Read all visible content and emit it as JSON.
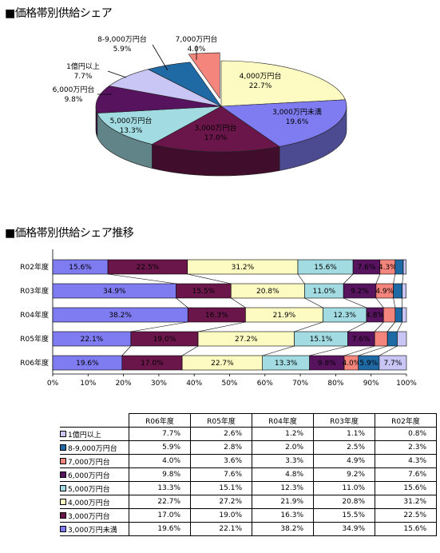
{
  "titles": {
    "pie": "■価格帯別供給シェア",
    "bar": "■価格帯別供給シェア推移"
  },
  "colors": {
    "c1": "#c9c5f5",
    "c2": "#1f6aa4",
    "c3": "#f4857d",
    "c4": "#58135f",
    "c5": "#a2dce2",
    "c6": "#fdfbc1",
    "c7": "#6b164a",
    "c8": "#7f7bf1"
  },
  "chart_data": [
    {
      "type": "pie",
      "title": "■価格帯別供給シェア",
      "slices": [
        {
          "name": "4,000万円台",
          "value": 22.7,
          "label": "22.7%",
          "color": "#fdfbc1"
        },
        {
          "name": "3,000万円未満",
          "value": 19.6,
          "label": "19.6%",
          "color": "#7f7bf1"
        },
        {
          "name": "3,000万円台",
          "value": 17.0,
          "label": "17.0%",
          "color": "#6b164a"
        },
        {
          "name": "5,000万円台",
          "value": 13.3,
          "label": "13.3%",
          "color": "#a2dce2"
        },
        {
          "name": "6,000万円台",
          "value": 9.8,
          "label": "9.8%",
          "color": "#58135f"
        },
        {
          "name": "1億円以上",
          "value": 7.7,
          "label": "7.7%",
          "color": "#c9c5f5"
        },
        {
          "name": "8-9,000万円台",
          "value": 5.9,
          "label": "5.9%",
          "color": "#1f6aa4"
        },
        {
          "name": "7,000万円台",
          "value": 4.0,
          "label": "4.0%",
          "color": "#f4857d"
        }
      ]
    },
    {
      "type": "bar",
      "orientation": "horizontal-stacked-100",
      "title": "■価格帯別供給シェア推移",
      "categories": [
        "R02年度",
        "R03年度",
        "R04年度",
        "R05年度",
        "R06年度"
      ],
      "xlim": [
        0,
        100
      ],
      "xticks": [
        "0%",
        "10%",
        "20%",
        "30%",
        "40%",
        "50%",
        "60%",
        "70%",
        "80%",
        "90%",
        "100%"
      ],
      "series": [
        {
          "name": "3,000万円未満",
          "color": "#7f7bf1",
          "values": [
            15.6,
            34.9,
            38.2,
            22.1,
            19.6
          ]
        },
        {
          "name": "3,000万円台",
          "color": "#6b164a",
          "values": [
            22.5,
            15.5,
            16.3,
            19.0,
            17.0
          ]
        },
        {
          "name": "4,000万円台",
          "color": "#fdfbc1",
          "values": [
            31.2,
            20.8,
            21.9,
            27.2,
            22.7
          ]
        },
        {
          "name": "5,000万円台",
          "color": "#a2dce2",
          "values": [
            15.6,
            11.0,
            12.3,
            15.1,
            13.3
          ]
        },
        {
          "name": "6,000万円台",
          "color": "#58135f",
          "values": [
            7.6,
            9.2,
            4.8,
            7.6,
            9.8
          ]
        },
        {
          "name": "7,000万円台",
          "color": "#f4857d",
          "values": [
            4.3,
            4.9,
            3.3,
            3.6,
            4.0
          ]
        },
        {
          "name": "8-9,000万円台",
          "color": "#1f6aa4",
          "values": [
            2.3,
            2.5,
            2.0,
            2.8,
            5.9
          ]
        },
        {
          "name": "1億円以上",
          "color": "#c9c5f5",
          "values": [
            0.8,
            1.1,
            1.2,
            2.6,
            7.7
          ]
        }
      ],
      "shown_labels": [
        [
          "15.6%",
          "22.5%",
          "31.2%",
          "15.6%",
          "7.6%",
          "4.3%",
          "",
          ""
        ],
        [
          "34.9%",
          "15.5%",
          "20.8%",
          "11.0%",
          "9.2%",
          "4.9%",
          "",
          ""
        ],
        [
          "38.2%",
          "16.3%",
          "21.9%",
          "12.3%",
          "4.8%",
          "",
          "",
          ""
        ],
        [
          "22.1%",
          "19.0%",
          "27.2%",
          "15.1%",
          "7.6%",
          "",
          "",
          ""
        ],
        [
          "19.6%",
          "17.0%",
          "22.7%",
          "13.3%",
          "9.8%",
          "4.0%",
          "5.9%",
          "7.7%"
        ]
      ]
    },
    {
      "type": "table",
      "columns": [
        "R06年度",
        "R05年度",
        "R04年度",
        "R03年度",
        "R02年度"
      ],
      "rows": [
        {
          "name": "1億円以上",
          "color": "#c9c5f5",
          "values": [
            "7.7%",
            "2.6%",
            "1.2%",
            "1.1%",
            "0.8%"
          ]
        },
        {
          "name": "8-9,000万円台",
          "color": "#1f6aa4",
          "values": [
            "5.9%",
            "2.8%",
            "2.0%",
            "2.5%",
            "2.3%"
          ]
        },
        {
          "name": "7,000万円台",
          "color": "#f4857d",
          "values": [
            "4.0%",
            "3.6%",
            "3.3%",
            "4.9%",
            "4.3%"
          ]
        },
        {
          "name": "6,000万円台",
          "color": "#58135f",
          "values": [
            "9.8%",
            "7.6%",
            "4.8%",
            "9.2%",
            "7.6%"
          ]
        },
        {
          "name": "5,000万円台",
          "color": "#a2dce2",
          "values": [
            "13.3%",
            "15.1%",
            "12.3%",
            "11.0%",
            "15.6%"
          ]
        },
        {
          "name": "4,000万円台",
          "color": "#fdfbc1",
          "values": [
            "22.7%",
            "27.2%",
            "21.9%",
            "20.8%",
            "31.2%"
          ]
        },
        {
          "name": "3,000万円台",
          "color": "#6b164a",
          "values": [
            "17.0%",
            "19.0%",
            "16.3%",
            "15.5%",
            "22.5%"
          ]
        },
        {
          "name": "3,000万円未満",
          "color": "#7f7bf1",
          "values": [
            "19.6%",
            "22.1%",
            "38.2%",
            "34.9%",
            "15.6%"
          ]
        }
      ]
    }
  ]
}
